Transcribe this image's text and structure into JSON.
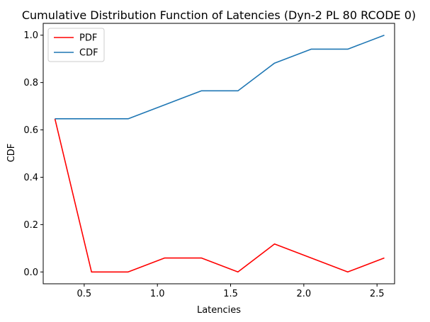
{
  "chart_data": {
    "type": "line",
    "title": "Cumulative Distribution Function of Latencies (Dyn-2 PL 80 RCODE 0)",
    "xlabel": "Latencies",
    "ylabel": "CDF",
    "xlim": [
      0.22,
      2.62
    ],
    "ylim": [
      -0.05,
      1.05
    ],
    "xticks": [
      0.5,
      1.0,
      1.5,
      2.0,
      2.5
    ],
    "xtick_labels": [
      "0.5",
      "1.0",
      "1.5",
      "2.0",
      "2.5"
    ],
    "yticks": [
      0.0,
      0.2,
      0.4,
      0.6,
      0.8,
      1.0
    ],
    "ytick_labels": [
      "0.0",
      "0.2",
      "0.4",
      "0.6",
      "0.8",
      "1.0"
    ],
    "grid": false,
    "legend_position": "top-left",
    "x": [
      0.3,
      0.55,
      0.8,
      1.05,
      1.3,
      1.55,
      1.8,
      2.05,
      2.3,
      2.55
    ],
    "series": [
      {
        "name": "PDF",
        "color": "#ff0000",
        "values": [
          0.647,
          0.0,
          0.0,
          0.059,
          0.059,
          0.0,
          0.118,
          0.059,
          0.0,
          0.059
        ]
      },
      {
        "name": "CDF",
        "color": "#1f77b4",
        "values": [
          0.647,
          0.647,
          0.647,
          0.706,
          0.765,
          0.765,
          0.882,
          0.941,
          0.941,
          1.0
        ]
      }
    ]
  }
}
